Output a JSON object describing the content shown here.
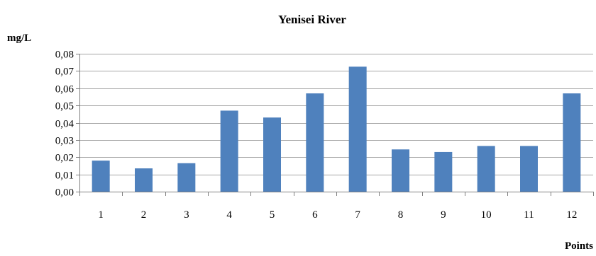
{
  "chart_data": {
    "type": "bar",
    "title": "Yenisei River",
    "ylabel": "mg/L",
    "xlabel": "Points",
    "categories": [
      "1",
      "2",
      "3",
      "4",
      "5",
      "6",
      "7",
      "8",
      "9",
      "10",
      "11",
      "12"
    ],
    "values": [
      0.018,
      0.0135,
      0.0165,
      0.047,
      0.043,
      0.057,
      0.0725,
      0.0245,
      0.023,
      0.0265,
      0.0265,
      0.057
    ],
    "ylim": [
      0,
      0.08
    ],
    "yticks": [
      0,
      0.01,
      0.02,
      0.03,
      0.04,
      0.05,
      0.06,
      0.07,
      0.08
    ],
    "ytick_labels": [
      "0,00",
      "0,01",
      "0,02",
      "0,03",
      "0,04",
      "0,05",
      "0,06",
      "0,07",
      "0,08"
    ],
    "grid": true,
    "bar_color": "#4f81bd",
    "grid_color": "#a6a6a6",
    "axis_color": "#7f7f7f"
  }
}
